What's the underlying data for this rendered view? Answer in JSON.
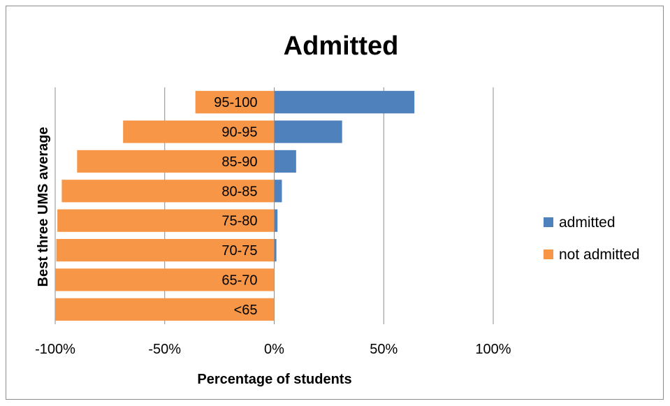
{
  "chart_data": {
    "type": "bar",
    "orientation": "horizontal",
    "stacking": "diverging",
    "title": "Admitted",
    "xlabel": "Percentage of students",
    "ylabel": "Best three UMS average",
    "categories": [
      "95-100",
      "90-95",
      "85-90",
      "80-85",
      "75-80",
      "70-75",
      "65-70",
      "<65"
    ],
    "series": [
      {
        "name": "admitted",
        "color": "#4f81bd",
        "values": [
          64,
          31,
          10,
          3.5,
          1.5,
          1,
          0,
          0
        ]
      },
      {
        "name": "not admitted",
        "color": "#f79646",
        "values": [
          -36,
          -69,
          -90,
          -97,
          -99,
          -99.5,
          -100,
          -100
        ]
      }
    ],
    "xlim": [
      -100,
      100
    ],
    "xticks": [
      -100,
      -50,
      0,
      50,
      100
    ],
    "xtick_labels": [
      "-100%",
      "-50%",
      "0%",
      "50%",
      "100%"
    ],
    "grid": true,
    "legend_position": "right"
  }
}
